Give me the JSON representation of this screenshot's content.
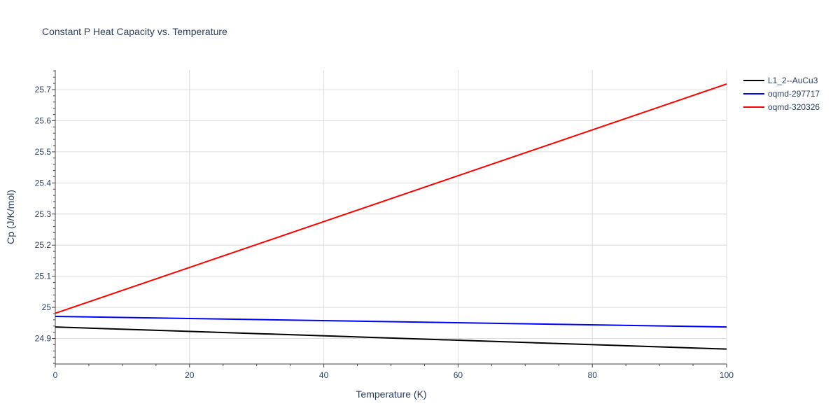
{
  "chart_data": {
    "type": "line",
    "title": "Constant P Heat Capacity vs. Temperature",
    "xlabel": "Temperature (K)",
    "ylabel": "Cp (J/K/mol)",
    "xlim": [
      0,
      100
    ],
    "ylim": [
      24.818,
      25.763
    ],
    "x_ticks": [
      0,
      20,
      40,
      60,
      80,
      100
    ],
    "y_ticks": [
      24.9,
      25,
      25.1,
      25.2,
      25.3,
      25.4,
      25.5,
      25.6,
      25.7
    ],
    "grid": true,
    "legend_position": "top-right",
    "series": [
      {
        "name": "L1_2--AuCu3",
        "color": "#000000",
        "x": [
          0,
          100
        ],
        "y": [
          24.937,
          24.866
        ]
      },
      {
        "name": "oqmd-297717",
        "color": "#0000ff",
        "x": [
          0,
          100
        ],
        "y": [
          24.971,
          24.937
        ]
      },
      {
        "name": "oqmd-320326",
        "color": "#ff0000",
        "x": [
          0,
          100
        ],
        "y": [
          24.981,
          25.718
        ]
      }
    ]
  }
}
